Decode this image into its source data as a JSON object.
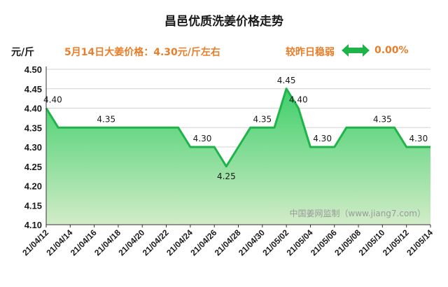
{
  "header": {
    "title": "昌邑优质洗姜价格走势",
    "unit": "元/斤",
    "today": "5月14日大姜价格：4.30元/斤左右",
    "compare_label": "较昨日稳弱",
    "change": "0.00%"
  },
  "watermark": "中国姜网监制（www.jiang7.com）",
  "colors": {
    "line": "#1fb44a",
    "fill_top": "#3ecf6a",
    "fill_bottom": "#d2ecc8",
    "accent": "#e87e2a",
    "arrow": "#1fb44a"
  },
  "chart_data": {
    "type": "area",
    "title": "昌邑优质洗姜价格走势",
    "ylabel": "元/斤",
    "ylim": [
      4.1,
      4.5
    ],
    "yticks": [
      "4.50",
      "4.45",
      "4.40",
      "4.35",
      "4.30",
      "4.25",
      "4.20",
      "4.15",
      "4.10"
    ],
    "grid": true,
    "xticks": [
      "21/04/12",
      "21/04/14",
      "21/04/16",
      "21/04/18",
      "21/04/20",
      "21/04/22",
      "21/04/24",
      "21/04/26",
      "21/04/28",
      "21/04/30",
      "21/05/02",
      "21/05/04",
      "21/05/06",
      "21/05/08",
      "21/05/10",
      "21/05/12",
      "21/05/14"
    ],
    "x": [
      "21/04/12",
      "21/04/13",
      "21/04/14",
      "21/04/15",
      "21/04/16",
      "21/04/17",
      "21/04/18",
      "21/04/19",
      "21/04/20",
      "21/04/21",
      "21/04/22",
      "21/04/23",
      "21/04/24",
      "21/04/25",
      "21/04/26",
      "21/04/27",
      "21/04/28",
      "21/04/29",
      "21/04/30",
      "21/05/01",
      "21/05/02",
      "21/05/03",
      "21/05/04",
      "21/05/05",
      "21/05/06",
      "21/05/07",
      "21/05/08",
      "21/05/09",
      "21/05/10",
      "21/05/11",
      "21/05/12",
      "21/05/13",
      "21/05/14"
    ],
    "values": [
      4.4,
      4.35,
      4.35,
      4.35,
      4.35,
      4.35,
      4.35,
      4.35,
      4.35,
      4.35,
      4.35,
      4.35,
      4.3,
      4.3,
      4.3,
      4.25,
      4.3,
      4.35,
      4.35,
      4.35,
      4.45,
      4.4,
      4.3,
      4.3,
      4.3,
      4.35,
      4.35,
      4.35,
      4.35,
      4.35,
      4.3,
      4.3,
      4.3
    ],
    "data_labels": [
      {
        "index": 0,
        "text": "4.40"
      },
      {
        "index": 5,
        "text": "4.35"
      },
      {
        "index": 13,
        "text": "4.30"
      },
      {
        "index": 15,
        "text": "4.25"
      },
      {
        "index": 18,
        "text": "4.35"
      },
      {
        "index": 20,
        "text": "4.45"
      },
      {
        "index": 21,
        "text": "4.40"
      },
      {
        "index": 23,
        "text": "4.30"
      },
      {
        "index": 28,
        "text": "4.35"
      },
      {
        "index": 31,
        "text": "4.30"
      }
    ]
  }
}
